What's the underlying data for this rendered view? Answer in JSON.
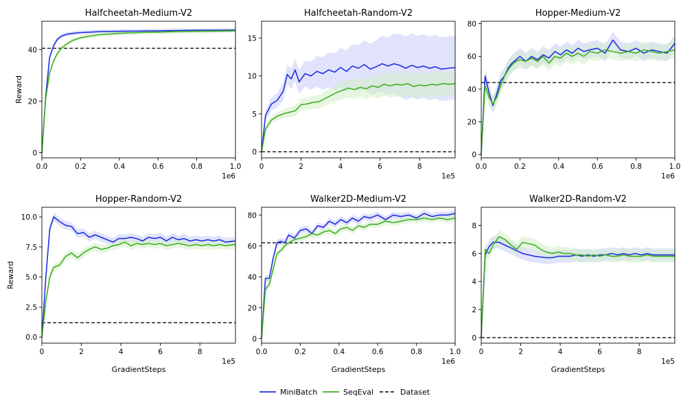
{
  "colors": {
    "minibatch": "#1f2de0",
    "minibatch_band": "#c9ccfb",
    "seqeval": "#3db01f",
    "seqeval_band": "#d3efc9",
    "dataset": "#222222"
  },
  "legend": {
    "entries": [
      "MiniBatch",
      "SeqEval",
      "Dataset"
    ],
    "placement": "bottom-center"
  },
  "chart_data": [
    {
      "type": "line",
      "title": "Halfcheetah-Medium-V2",
      "xlabel": "",
      "ylabel": "Reward",
      "x_offset_label": "1e6",
      "xlim": [
        0,
        1.0
      ],
      "ylim": [
        -2,
        51
      ],
      "xticks": [
        "0.0",
        "0.2",
        "0.4",
        "0.6",
        "0.8",
        "1.0"
      ],
      "xtick_values": [
        0,
        0.2,
        0.4,
        0.6,
        0.8,
        1.0
      ],
      "yticks": [
        "0",
        "20",
        "40"
      ],
      "ytick_values": [
        0,
        20,
        40
      ],
      "dataset": 40.5,
      "series": [
        {
          "name": "MiniBatch",
          "x": [
            0,
            0.02,
            0.04,
            0.06,
            0.08,
            0.1,
            0.13,
            0.16,
            0.2,
            0.25,
            0.3,
            0.4,
            0.5,
            0.6,
            0.7,
            0.8,
            0.9,
            1.0
          ],
          "y": [
            0,
            22,
            37,
            41.5,
            44,
            45.2,
            46,
            46.3,
            46.6,
            46.8,
            47,
            47.1,
            47.2,
            47.3,
            47.4,
            47.5,
            47.5,
            47.6
          ]
        },
        {
          "name": "SeqEval",
          "x": [
            0,
            0.02,
            0.04,
            0.06,
            0.08,
            0.1,
            0.13,
            0.16,
            0.2,
            0.25,
            0.3,
            0.4,
            0.5,
            0.6,
            0.7,
            0.8,
            0.9,
            1.0
          ],
          "y": [
            0,
            21,
            31,
            35.5,
            38.5,
            40.5,
            42.3,
            43.6,
            44.6,
            45.3,
            45.8,
            46.3,
            46.6,
            46.8,
            47,
            47.1,
            47.2,
            47.3
          ]
        }
      ]
    },
    {
      "type": "line",
      "title": "Halfcheetah-Random-V2",
      "xlabel": "",
      "ylabel": "",
      "x_offset_label": "1e5",
      "xlim": [
        0,
        9.8
      ],
      "ylim": [
        -0.8,
        17.2
      ],
      "xticks": [
        "0",
        "2",
        "4",
        "6",
        "8"
      ],
      "xtick_values": [
        0,
        2,
        4,
        6,
        8
      ],
      "yticks": [
        "0",
        "5",
        "10",
        "15"
      ],
      "ytick_values": [
        0,
        5,
        10,
        15
      ],
      "dataset": 0,
      "series": [
        {
          "name": "MiniBatch",
          "x": [
            0,
            0.2,
            0.5,
            0.8,
            1.1,
            1.3,
            1.5,
            1.7,
            1.9,
            2.2,
            2.5,
            2.8,
            3.1,
            3.4,
            3.7,
            4.0,
            4.3,
            4.6,
            4.9,
            5.2,
            5.5,
            5.8,
            6.1,
            6.4,
            6.7,
            7.0,
            7.3,
            7.6,
            7.9,
            8.2,
            8.5,
            8.8,
            9.1,
            9.4,
            9.8
          ],
          "y": [
            0,
            4.8,
            6.3,
            6.8,
            8.0,
            10.2,
            9.6,
            10.8,
            9.2,
            10.3,
            10.0,
            10.6,
            10.3,
            10.8,
            10.5,
            11.1,
            10.6,
            11.3,
            11.0,
            11.5,
            10.9,
            11.2,
            11.6,
            11.3,
            11.6,
            11.4,
            11.0,
            11.4,
            11.1,
            11.3,
            11.0,
            11.2,
            10.9,
            11.0,
            11.1
          ]
        },
        {
          "name": "SeqEval",
          "x": [
            0,
            0.2,
            0.5,
            0.8,
            1.1,
            1.4,
            1.7,
            2.0,
            2.3,
            2.6,
            2.9,
            3.2,
            3.5,
            3.8,
            4.1,
            4.4,
            4.7,
            5.0,
            5.3,
            5.6,
            5.9,
            6.2,
            6.5,
            6.8,
            7.1,
            7.4,
            7.7,
            8.0,
            8.3,
            8.6,
            8.9,
            9.2,
            9.5,
            9.8
          ],
          "y": [
            0,
            3.0,
            4.2,
            4.7,
            5.0,
            5.2,
            5.4,
            6.2,
            6.3,
            6.5,
            6.6,
            7.0,
            7.4,
            7.8,
            8.1,
            8.4,
            8.2,
            8.5,
            8.3,
            8.7,
            8.5,
            8.9,
            8.7,
            8.9,
            8.8,
            9.0,
            8.6,
            8.8,
            8.7,
            8.9,
            8.8,
            9.0,
            8.9,
            9.0
          ]
        }
      ]
    },
    {
      "type": "line",
      "title": "Hopper-Medium-V2",
      "xlabel": "",
      "ylabel": "",
      "x_offset_label": "1e6",
      "xlim": [
        0,
        1.0
      ],
      "ylim": [
        -2,
        81.5
      ],
      "xticks": [
        "0.0",
        "0.2",
        "0.4",
        "0.6",
        "0.8",
        "1.0"
      ],
      "xtick_values": [
        0,
        0.2,
        0.4,
        0.6,
        0.8,
        1.0
      ],
      "yticks": [
        "0",
        "20",
        "40",
        "60",
        "80"
      ],
      "ytick_values": [
        0,
        20,
        40,
        60,
        80
      ],
      "dataset": 44,
      "series": [
        {
          "name": "MiniBatch",
          "x": [
            0,
            0.02,
            0.04,
            0.06,
            0.08,
            0.1,
            0.12,
            0.14,
            0.16,
            0.18,
            0.2,
            0.23,
            0.26,
            0.29,
            0.32,
            0.35,
            0.38,
            0.41,
            0.44,
            0.47,
            0.5,
            0.53,
            0.56,
            0.6,
            0.64,
            0.68,
            0.72,
            0.76,
            0.8,
            0.84,
            0.88,
            0.92,
            0.96,
            1.0
          ],
          "y": [
            0,
            48,
            38,
            30,
            37,
            45,
            48,
            53,
            56,
            58,
            60,
            57,
            60,
            58,
            61,
            59,
            63,
            61,
            64,
            62,
            65,
            63,
            64,
            65,
            62,
            70,
            64,
            63,
            65,
            62,
            64,
            63,
            62,
            68
          ]
        },
        {
          "name": "SeqEval",
          "x": [
            0,
            0.02,
            0.04,
            0.06,
            0.08,
            0.1,
            0.12,
            0.14,
            0.16,
            0.18,
            0.2,
            0.23,
            0.26,
            0.29,
            0.32,
            0.35,
            0.38,
            0.41,
            0.44,
            0.47,
            0.5,
            0.53,
            0.56,
            0.6,
            0.64,
            0.68,
            0.72,
            0.76,
            0.8,
            0.84,
            0.88,
            0.92,
            0.96,
            1.0
          ],
          "y": [
            0,
            42,
            35,
            31,
            35,
            42,
            48,
            52,
            55,
            57,
            58,
            57,
            59,
            57,
            60,
            56,
            60,
            59,
            62,
            60,
            62,
            60,
            63,
            62,
            64,
            63,
            62,
            63,
            62,
            64,
            63,
            62,
            63,
            64
          ]
        }
      ]
    },
    {
      "type": "line",
      "title": "Hopper-Random-V2",
      "xlabel": "GradientSteps",
      "ylabel": "Reward",
      "x_offset_label": "1e5",
      "xlim": [
        0,
        9.8
      ],
      "ylim": [
        -0.5,
        10.8
      ],
      "xticks": [
        "0",
        "2",
        "4",
        "6",
        "8"
      ],
      "xtick_values": [
        0,
        2,
        4,
        6,
        8
      ],
      "yticks": [
        "0.0",
        "2.5",
        "5.0",
        "7.5",
        "10.0"
      ],
      "ytick_values": [
        0,
        2.5,
        5.0,
        7.5,
        10.0
      ],
      "dataset": 1.2,
      "series": [
        {
          "name": "MiniBatch",
          "x": [
            0,
            0.2,
            0.4,
            0.6,
            0.9,
            1.2,
            1.5,
            1.8,
            2.1,
            2.4,
            2.7,
            3.0,
            3.3,
            3.6,
            3.9,
            4.2,
            4.5,
            4.8,
            5.1,
            5.4,
            5.7,
            6.0,
            6.3,
            6.6,
            6.9,
            7.2,
            7.5,
            7.8,
            8.1,
            8.4,
            8.7,
            9.0,
            9.3,
            9.8
          ],
          "y": [
            0,
            5.0,
            9.0,
            10.0,
            9.6,
            9.3,
            9.2,
            8.6,
            8.7,
            8.3,
            8.5,
            8.3,
            8.1,
            7.9,
            8.2,
            8.2,
            8.3,
            8.2,
            8.0,
            8.3,
            8.2,
            8.3,
            8.0,
            8.3,
            8.1,
            8.2,
            8.0,
            8.1,
            8.0,
            8.1,
            8.0,
            8.1,
            7.9,
            8.0
          ]
        },
        {
          "name": "SeqEval",
          "x": [
            0,
            0.2,
            0.4,
            0.6,
            0.9,
            1.2,
            1.5,
            1.8,
            2.1,
            2.4,
            2.7,
            3.0,
            3.3,
            3.6,
            3.9,
            4.2,
            4.5,
            4.8,
            5.1,
            5.4,
            5.7,
            6.0,
            6.3,
            6.6,
            6.9,
            7.2,
            7.5,
            7.8,
            8.1,
            8.4,
            8.7,
            9.0,
            9.3,
            9.8
          ],
          "y": [
            0,
            3.0,
            5.0,
            5.8,
            6.0,
            6.7,
            7.0,
            6.6,
            7.0,
            7.3,
            7.5,
            7.3,
            7.4,
            7.6,
            7.7,
            7.9,
            7.6,
            7.8,
            7.7,
            7.8,
            7.7,
            7.8,
            7.6,
            7.7,
            7.8,
            7.7,
            7.6,
            7.7,
            7.6,
            7.7,
            7.6,
            7.7,
            7.6,
            7.7
          ]
        }
      ]
    },
    {
      "type": "line",
      "title": "Walker2D-Medium-V2",
      "xlabel": "GradientSteps",
      "ylabel": "",
      "x_offset_label": "1e6",
      "xlim": [
        0,
        1.0
      ],
      "ylim": [
        -3,
        85
      ],
      "xticks": [
        "0.0",
        "0.2",
        "0.4",
        "0.6",
        "0.8",
        "1.0"
      ],
      "xtick_values": [
        0,
        0.2,
        0.4,
        0.6,
        0.8,
        1.0
      ],
      "yticks": [
        "0",
        "20",
        "40",
        "60",
        "80"
      ],
      "ytick_values": [
        0,
        20,
        40,
        60,
        80
      ],
      "dataset": 62,
      "series": [
        {
          "name": "MiniBatch",
          "x": [
            0,
            0.02,
            0.04,
            0.06,
            0.08,
            0.1,
            0.12,
            0.14,
            0.17,
            0.2,
            0.23,
            0.26,
            0.29,
            0.32,
            0.35,
            0.38,
            0.41,
            0.44,
            0.47,
            0.5,
            0.53,
            0.56,
            0.6,
            0.64,
            0.68,
            0.72,
            0.76,
            0.8,
            0.84,
            0.88,
            0.92,
            0.96,
            1.0
          ],
          "y": [
            0,
            39,
            39,
            52,
            62,
            63,
            62,
            67,
            65,
            70,
            71,
            68,
            73,
            72,
            76,
            74,
            77,
            75,
            78,
            76,
            79,
            78,
            80,
            77,
            80,
            79,
            80,
            78,
            81,
            79,
            80,
            80,
            81
          ]
        },
        {
          "name": "SeqEval",
          "x": [
            0,
            0.02,
            0.04,
            0.06,
            0.08,
            0.1,
            0.12,
            0.14,
            0.17,
            0.2,
            0.23,
            0.26,
            0.29,
            0.32,
            0.35,
            0.38,
            0.41,
            0.44,
            0.47,
            0.5,
            0.53,
            0.56,
            0.6,
            0.64,
            0.68,
            0.72,
            0.76,
            0.8,
            0.84,
            0.88,
            0.92,
            0.96,
            1.0
          ],
          "y": [
            0,
            32,
            35,
            45,
            55,
            57,
            60,
            62,
            64,
            65,
            66,
            68,
            67,
            69,
            70,
            68,
            71,
            72,
            70,
            73,
            72,
            74,
            74,
            76,
            75,
            76,
            77,
            77,
            78,
            77,
            78,
            77,
            78
          ]
        }
      ]
    },
    {
      "type": "line",
      "title": "Walker2D-Random-V2",
      "xlabel": "GradientSteps",
      "ylabel": "",
      "x_offset_label": "1e5",
      "xlim": [
        0,
        9.8
      ],
      "ylim": [
        -0.4,
        9.3
      ],
      "xticks": [
        "0",
        "2",
        "4",
        "6",
        "8"
      ],
      "xtick_values": [
        0,
        2,
        4,
        6,
        8
      ],
      "yticks": [
        "0",
        "2",
        "4",
        "6",
        "8"
      ],
      "ytick_values": [
        0,
        2,
        4,
        6,
        8
      ],
      "dataset": 0,
      "series": [
        {
          "name": "MiniBatch",
          "x": [
            0,
            0.2,
            0.4,
            0.6,
            0.9,
            1.2,
            1.5,
            1.8,
            2.1,
            2.4,
            2.7,
            3.0,
            3.3,
            3.6,
            3.9,
            4.2,
            4.5,
            4.8,
            5.1,
            5.4,
            5.7,
            6.0,
            6.3,
            6.6,
            6.9,
            7.2,
            7.5,
            7.8,
            8.1,
            8.4,
            8.7,
            9.0,
            9.3,
            9.8
          ],
          "y": [
            0,
            5.9,
            6.5,
            6.8,
            6.8,
            6.6,
            6.4,
            6.2,
            6.0,
            5.9,
            5.8,
            5.75,
            5.7,
            5.7,
            5.8,
            5.8,
            5.8,
            5.9,
            5.8,
            5.9,
            5.8,
            5.9,
            5.9,
            6.0,
            5.9,
            6.0,
            5.9,
            6.0,
            5.9,
            6.0,
            5.9,
            5.9,
            5.9,
            5.9
          ]
        },
        {
          "name": "SeqEval",
          "x": [
            0,
            0.2,
            0.4,
            0.6,
            0.9,
            1.2,
            1.5,
            1.8,
            2.1,
            2.4,
            2.7,
            3.0,
            3.3,
            3.6,
            3.9,
            4.2,
            4.5,
            4.8,
            5.1,
            5.4,
            5.7,
            6.0,
            6.3,
            6.6,
            6.9,
            7.2,
            7.5,
            7.8,
            8.1,
            8.4,
            8.7,
            9.0,
            9.3,
            9.8
          ],
          "y": [
            0,
            6.3,
            6.0,
            6.6,
            7.2,
            7.0,
            6.6,
            6.3,
            6.8,
            6.7,
            6.6,
            6.3,
            6.1,
            6.0,
            6.1,
            6.0,
            6.0,
            5.9,
            5.9,
            5.8,
            5.9,
            5.8,
            5.9,
            5.8,
            5.8,
            5.9,
            5.8,
            5.8,
            5.8,
            5.9,
            5.8,
            5.8,
            5.8,
            5.8
          ]
        }
      ]
    }
  ]
}
